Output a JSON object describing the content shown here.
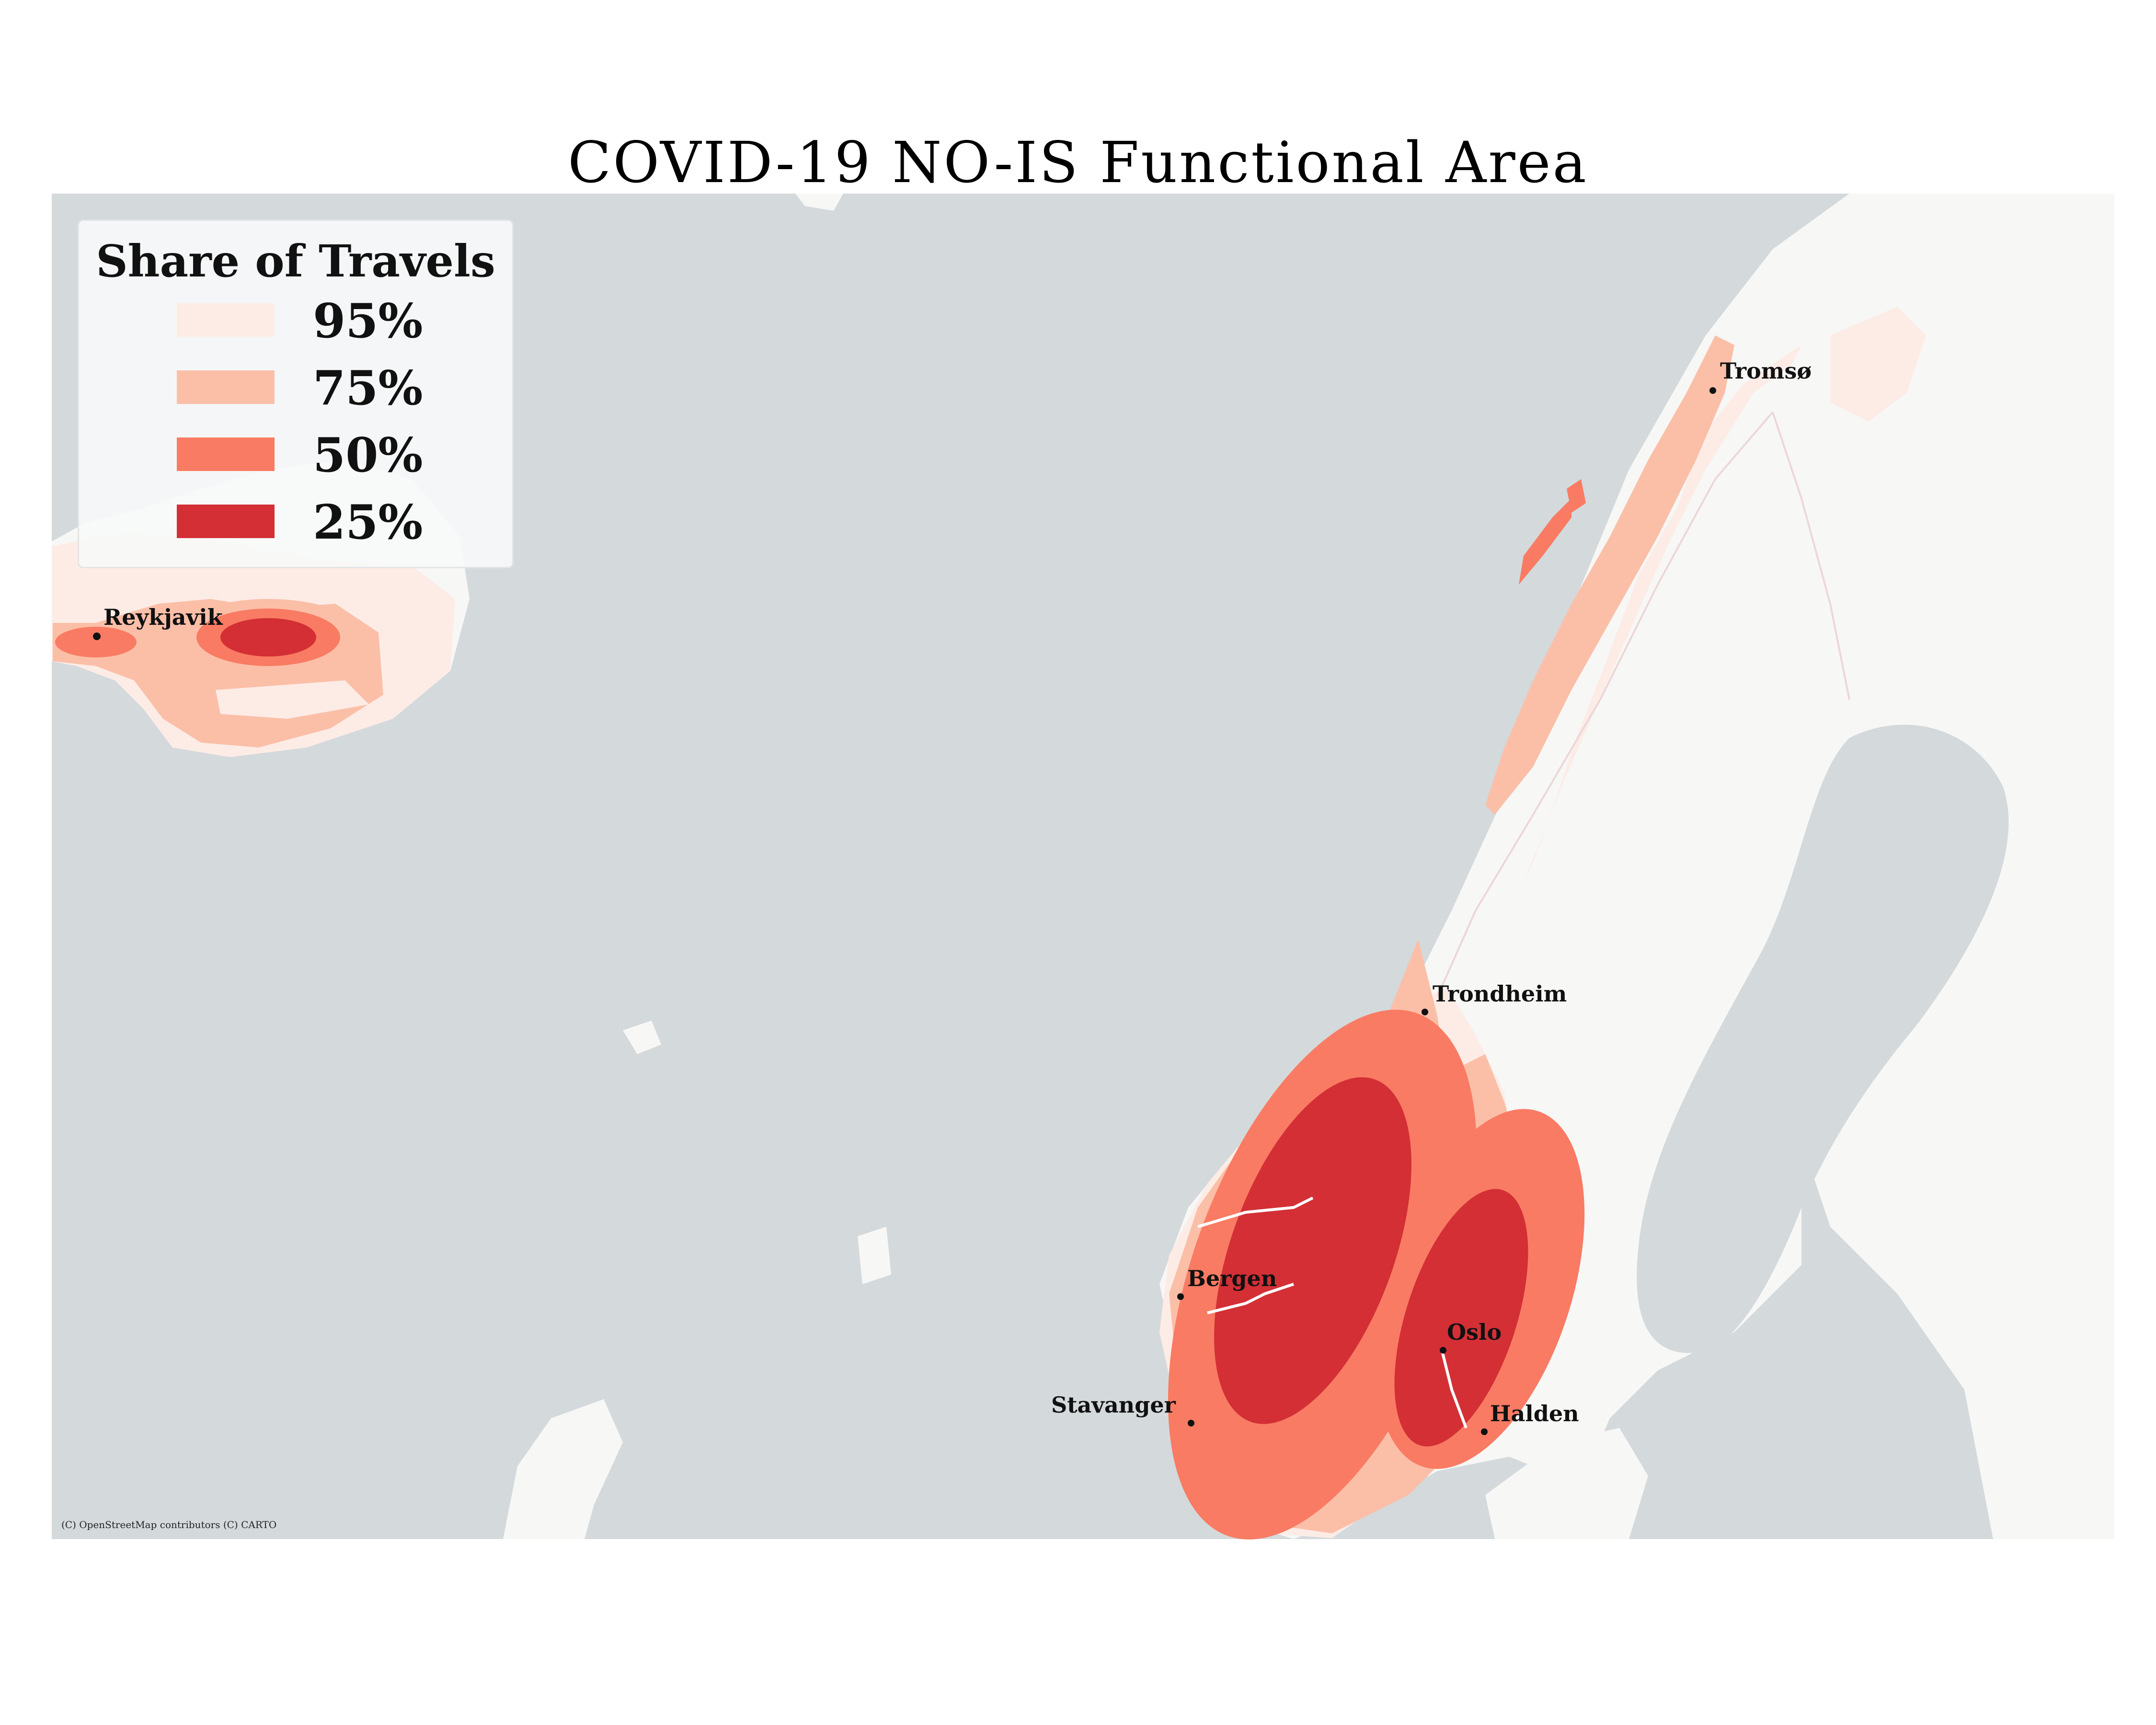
{
  "title": "COVID-19 NO-IS Functional Area",
  "legend": {
    "title": "Share of Travels",
    "items": [
      {
        "label": "95%",
        "color": "#fdece6"
      },
      {
        "label": "75%",
        "color": "#fbbfa8"
      },
      {
        "label": "50%",
        "color": "#f97b63"
      },
      {
        "label": "25%",
        "color": "#d32f35"
      }
    ]
  },
  "cities": [
    {
      "name": "Reykjavik"
    },
    {
      "name": "Tromsø"
    },
    {
      "name": "Trondheim"
    },
    {
      "name": "Bergen"
    },
    {
      "name": "Oslo"
    },
    {
      "name": "Stavanger"
    },
    {
      "name": "Halden"
    }
  ],
  "attribution": "(C) OpenStreetMap contributors (C) CARTO",
  "colors": {
    "sea": "#d4d9dc",
    "land": "#f7f7f6",
    "border": "#f0d8d8"
  }
}
